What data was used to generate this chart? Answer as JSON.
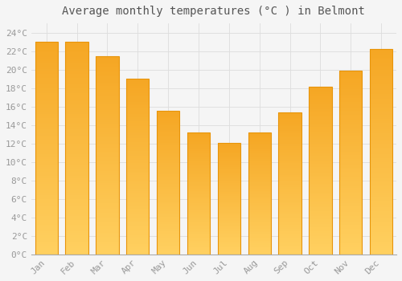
{
  "title": "Average monthly temperatures (°C ) in Belmont",
  "months": [
    "Jan",
    "Feb",
    "Mar",
    "Apr",
    "May",
    "Jun",
    "Jul",
    "Aug",
    "Sep",
    "Oct",
    "Nov",
    "Dec"
  ],
  "values": [
    23.0,
    23.0,
    21.4,
    19.0,
    15.5,
    13.2,
    12.1,
    13.2,
    15.4,
    18.1,
    19.9,
    22.2
  ],
  "bar_color_top": "#F5A623",
  "bar_color_bottom": "#FFD060",
  "bar_edge_color": "#E8950A",
  "background_color": "#F5F5F5",
  "plot_bg_color": "#F5F5F5",
  "grid_color": "#DDDDDD",
  "ylim": [
    0,
    25
  ],
  "ytick_step": 2,
  "title_fontsize": 10,
  "tick_fontsize": 8,
  "tick_color": "#999999",
  "title_color": "#555555",
  "font_family": "monospace"
}
